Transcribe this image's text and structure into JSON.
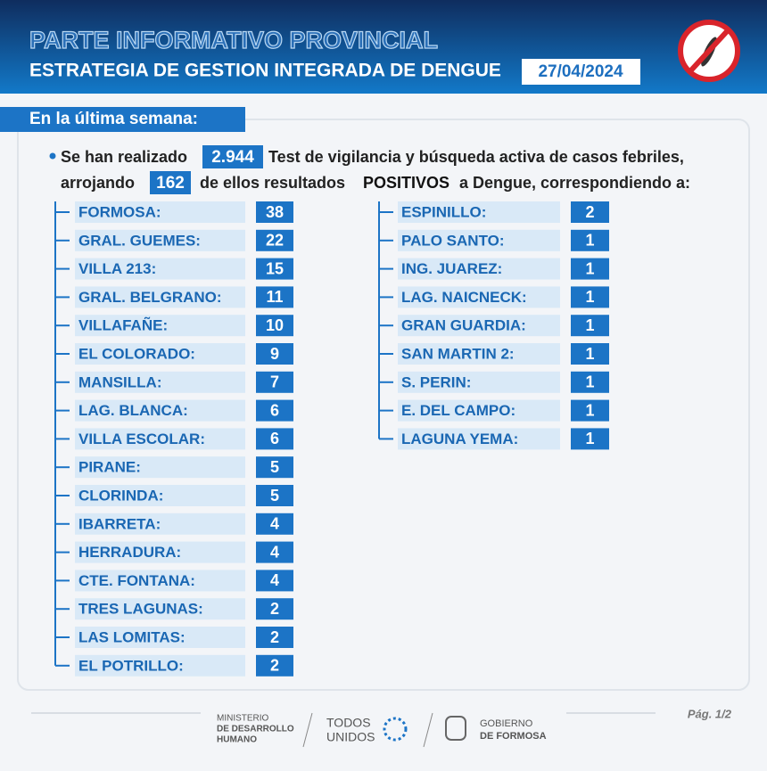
{
  "header": {
    "title": "PARTE INFORMATIVO PROVINCIAL",
    "subtitle": "ESTRATEGIA DE GESTION INTEGRADA DE DENGUE",
    "date": "27/04/2024"
  },
  "section": "En la última semana:",
  "summary": {
    "p1": "Se han realizado",
    "tests": "2.944",
    "p2": "Test de vigilancia y búsqueda activa de casos febriles,",
    "p3": "arrojando",
    "positives": 162,
    "p4": "de ellos resultados",
    "p5": "POSITIVOS",
    "p6": "a Dengue, correspondiendo a:"
  },
  "left": [
    [
      "FORMOSA:",
      38
    ],
    [
      "GRAL. GUEMES:",
      22
    ],
    [
      "VILLA 213:",
      15
    ],
    [
      "GRAL. BELGRANO:",
      11
    ],
    [
      "VILLAFAÑE:",
      10
    ],
    [
      "EL COLORADO:",
      9
    ],
    [
      "MANSILLA:",
      7
    ],
    [
      "LAG. BLANCA:",
      6
    ],
    [
      "VILLA ESCOLAR:",
      6
    ],
    [
      "PIRANE:",
      5
    ],
    [
      "CLORINDA:",
      5
    ],
    [
      "IBARRETA:",
      4
    ],
    [
      "HERRADURA:",
      4
    ],
    [
      "CTE. FONTANA:",
      4
    ],
    [
      "TRES LAGUNAS:",
      2
    ],
    [
      "LAS LOMITAS:",
      2
    ],
    [
      "EL POTRILLO:",
      2
    ]
  ],
  "right": [
    [
      "ESPINILLO:",
      2
    ],
    [
      "PALO SANTO:",
      1
    ],
    [
      "ING. JUAREZ:",
      1
    ],
    [
      "LAG. NAICNECK:",
      1
    ],
    [
      "GRAN GUARDIA:",
      1
    ],
    [
      "SAN MARTIN 2:",
      1
    ],
    [
      "S. PERIN:",
      1
    ],
    [
      "E. DEL CAMPO:",
      1
    ],
    [
      "LAGUNA YEMA:",
      1
    ]
  ],
  "footer": {
    "ministry": [
      "MINISTERIO",
      "DE DESARROLLO",
      "HUMANO"
    ],
    "todos": [
      "TODOS",
      "UNIDOS"
    ],
    "gobierno": [
      "GOBIERNO",
      "DE FORMOSA"
    ],
    "page": "Pág. 1/2"
  }
}
